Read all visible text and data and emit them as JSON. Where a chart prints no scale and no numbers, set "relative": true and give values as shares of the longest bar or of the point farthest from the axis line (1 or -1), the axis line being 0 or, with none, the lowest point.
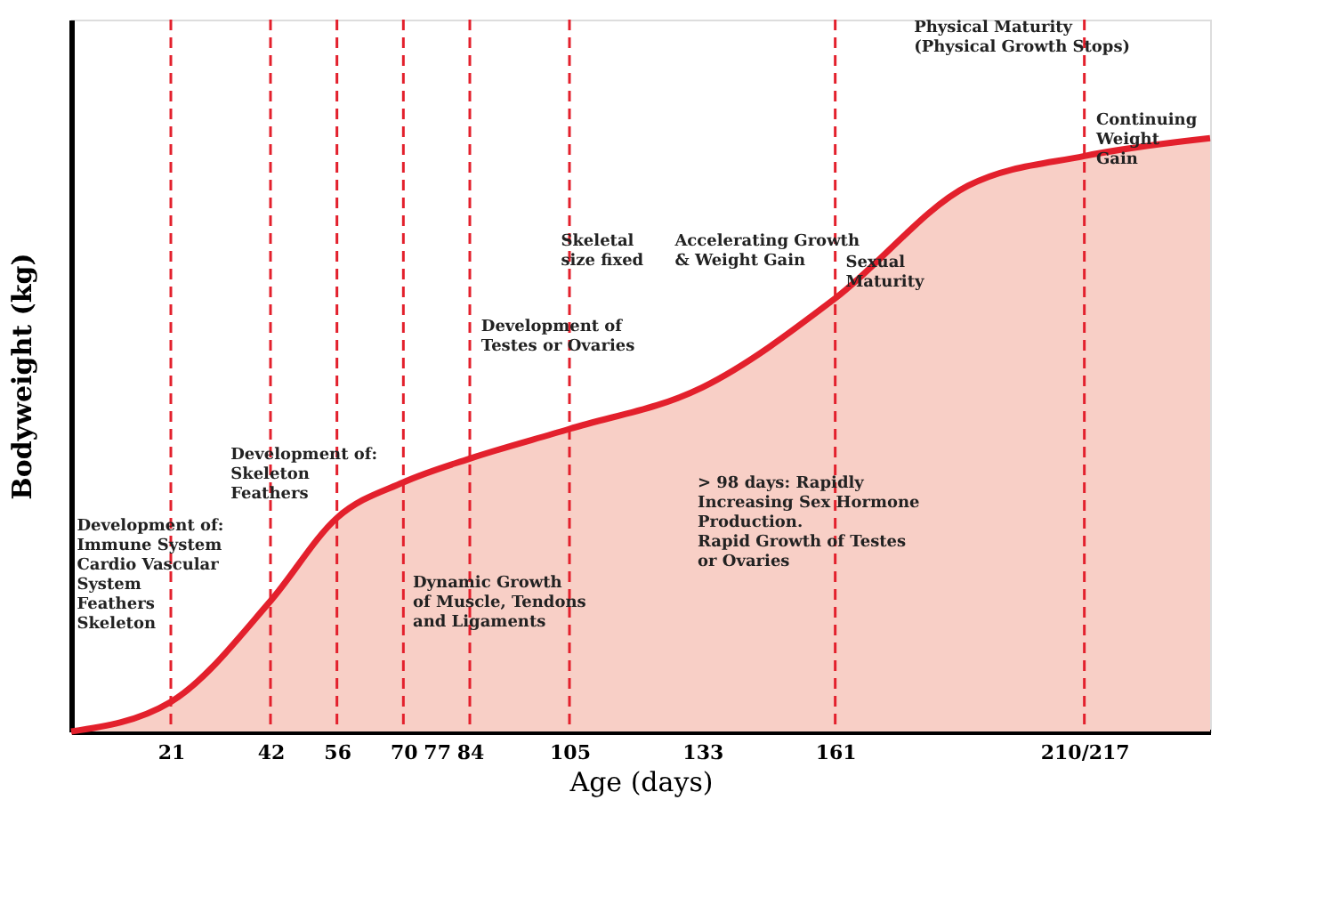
{
  "chart_data": {
    "type": "area",
    "relative": true,
    "xlabel": "Age (days)",
    "ylabel": "Bodyweight (kg)",
    "x": [
      0,
      21,
      42,
      56,
      70,
      84,
      105,
      133,
      161,
      189,
      213.5,
      240
    ],
    "series": [
      {
        "color": "#e3202c",
        "values": [
          0,
          0.05,
          0.22,
          0.36,
          0.42,
          0.46,
          0.51,
          0.58,
          0.73,
          0.92,
          0.97,
          1.0
        ]
      }
    ],
    "xlim": [
      0,
      240
    ],
    "xticks": [
      21,
      42,
      56,
      70,
      77,
      84,
      105,
      133,
      161,
      {
        "value": 213.5,
        "label": "210/217"
      }
    ],
    "ref_lines": [
      {
        "axis": "x",
        "value": 21,
        "color": "#e3202c",
        "line_style": "dashed"
      },
      {
        "axis": "x",
        "value": 42,
        "color": "#e3202c",
        "line_style": "dashed"
      },
      {
        "axis": "x",
        "value": 56,
        "color": "#e3202c",
        "line_style": "dashed"
      },
      {
        "axis": "x",
        "value": 70,
        "color": "#e3202c",
        "line_style": "dashed"
      },
      {
        "axis": "x",
        "value": 84,
        "color": "#e3202c",
        "line_style": "dashed"
      },
      {
        "axis": "x",
        "value": 105,
        "color": "#e3202c",
        "line_style": "dashed"
      },
      {
        "axis": "x",
        "value": 161,
        "color": "#e3202c",
        "line_style": "dashed"
      },
      {
        "axis": "x",
        "value": 213.5,
        "color": "#e3202c",
        "line_style": "dashed"
      }
    ],
    "annotations": [
      "Development of:\nImmune System\nCardio Vascular\nSystem\nFeathers\nSkeleton",
      "Development of:\nSkeleton\nFeathers",
      "Dynamic Growth\nof Muscle, Tendons\nand Ligaments",
      "Development of\nTestes or Ovaries",
      "Skeletal\nsize fixed",
      "Accelerating Growth\n& Weight Gain",
      "> 98 days: Rapidly\nIncreasing Sex Hormone\nProduction.\nRapid Growth of Testes\nor Ovaries",
      "Sexual\nMaturity",
      "Physical Maturity\n(Physical Growth Stops)",
      "Continuing\nWeight\nGain"
    ],
    "grid": false
  }
}
